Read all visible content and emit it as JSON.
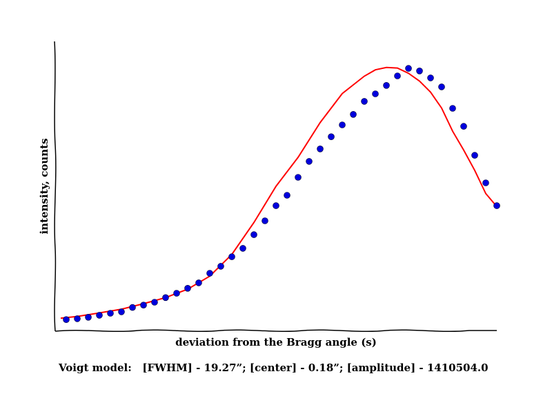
{
  "chart_data": {
    "type": "scatter",
    "title": "",
    "xlabel": "deviation from the Bragg angle (s)",
    "ylabel": "intensity, counts",
    "caption": "Voigt model:   [FWHM] - 19.27”; [center] - 0.18”; [amplitude] - 1410504.0",
    "x_tick_labels": [],
    "y_tick_labels": [],
    "grid": false,
    "legend": "none",
    "xlim": [
      0,
      40
    ],
    "ylim": [
      0,
      100
    ],
    "colors": {
      "points": "#0000dd",
      "fit": "#ff0000",
      "axis": "#000000"
    },
    "series": [
      {
        "kind": "points",
        "x": [
          1,
          2,
          3,
          4,
          5,
          6,
          7,
          8,
          9,
          10,
          11,
          12,
          13,
          14,
          15,
          16,
          17,
          18,
          19,
          20,
          21,
          22,
          23,
          24,
          25,
          26,
          27,
          28,
          29,
          30,
          31,
          32,
          33,
          34,
          35,
          36,
          37,
          38,
          39,
          40
        ],
        "y": [
          4.0,
          4.3,
          4.8,
          5.5,
          6.2,
          6.7,
          8.2,
          9.0,
          10.0,
          11.6,
          13.1,
          14.8,
          16.7,
          20.0,
          22.4,
          25.7,
          28.6,
          33.3,
          38.1,
          43.3,
          46.9,
          53.1,
          58.6,
          62.9,
          67.1,
          71.2,
          74.8,
          79.3,
          81.9,
          84.8,
          88.1,
          90.7,
          89.8,
          87.4,
          84.3,
          76.9,
          70.7,
          60.7,
          51.2,
          43.3
        ]
      },
      {
        "kind": "fit",
        "x": [
          0.5,
          2,
          4,
          6,
          8,
          10,
          12,
          14,
          16,
          18,
          20,
          22,
          24,
          26,
          28,
          29,
          30,
          31,
          32,
          33,
          34,
          35,
          36,
          37,
          38,
          39,
          40
        ],
        "y": [
          4.5,
          5.1,
          6.3,
          7.6,
          9.5,
          11.6,
          14.5,
          19.0,
          26.5,
          37.5,
          50.0,
          60.0,
          72.0,
          82.0,
          88.0,
          90.2,
          91.0,
          90.8,
          89.0,
          86.3,
          82.5,
          77.0,
          69.0,
          62.5,
          55.5,
          47.5,
          43.0
        ]
      }
    ]
  }
}
